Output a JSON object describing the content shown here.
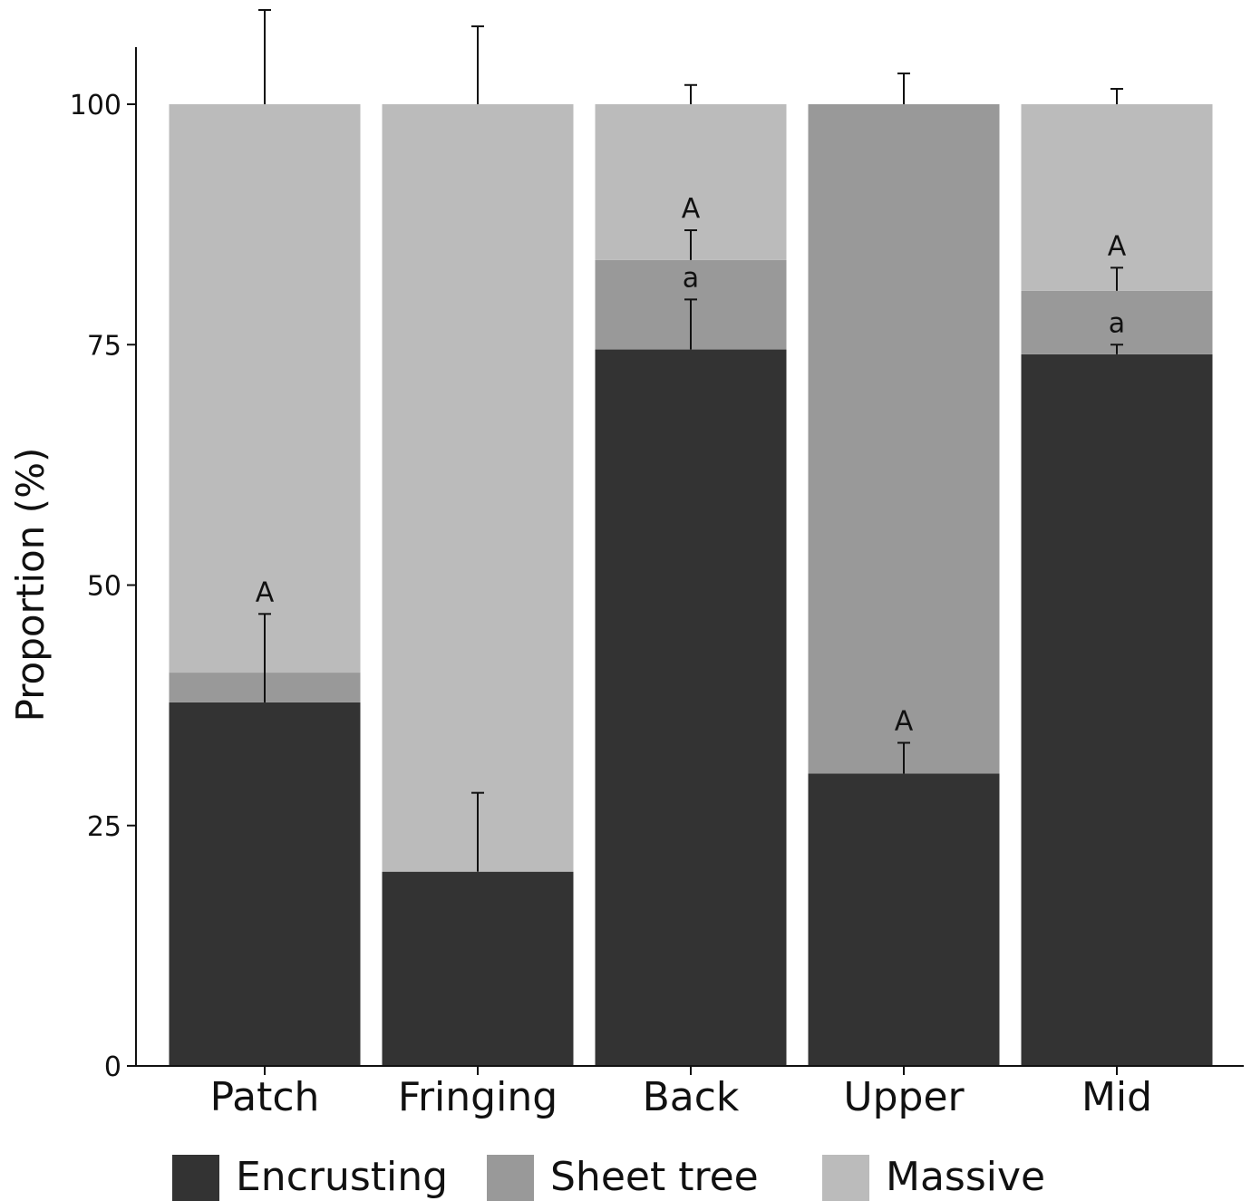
{
  "chart_data": {
    "type": "bar",
    "stacked": true,
    "categories": [
      "Patch",
      "Fringing",
      "Back",
      "Upper",
      "Mid"
    ],
    "ylabel": "Proportion (%)",
    "ylim": [
      0,
      100
    ],
    "yticks": [
      0,
      25,
      50,
      75,
      100
    ],
    "grid": false,
    "legend_position": "bottom",
    "series": [
      {
        "name": "Encrusting",
        "color": "#333333",
        "values": [
          37.8,
          20.2,
          74.5,
          30.4,
          74.0
        ],
        "error_upper": [
          9.2,
          8.2,
          5.2,
          3.2,
          1.0
        ]
      },
      {
        "name": "Sheet tree",
        "color": "#999999",
        "values": [
          3.1,
          0,
          9.3,
          69.6,
          6.6
        ],
        "error_upper": [
          0,
          0,
          3.1,
          0,
          2.4
        ]
      },
      {
        "name": "Massive",
        "color": "#bbbbbb",
        "values": [
          59.1,
          79.8,
          16.2,
          0,
          19.4
        ],
        "error_upper": [
          9.8,
          8.1,
          2.0,
          3.2,
          1.6
        ]
      }
    ],
    "annotations": [
      {
        "category": "Patch",
        "series": "Encrusting",
        "text": "A"
      },
      {
        "category": "Back",
        "series": "Encrusting",
        "text": "a"
      },
      {
        "category": "Back",
        "series": "Sheet tree",
        "text": "A"
      },
      {
        "category": "Upper",
        "series": "Encrusting",
        "text": "A"
      },
      {
        "category": "Mid",
        "series": "Encrusting",
        "text": "a"
      },
      {
        "category": "Mid",
        "series": "Sheet tree",
        "text": "A"
      }
    ]
  }
}
